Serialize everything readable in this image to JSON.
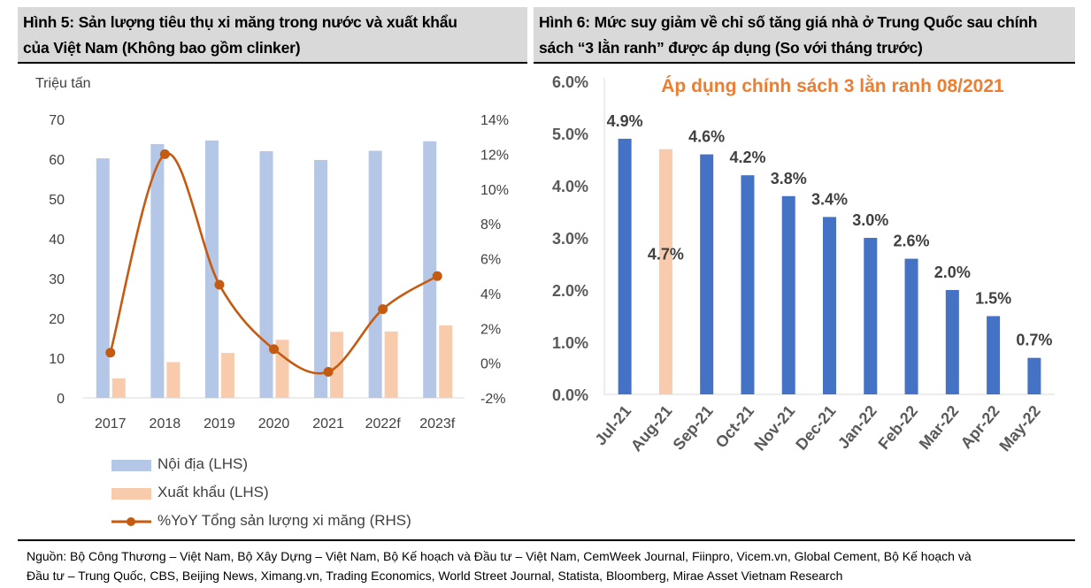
{
  "figure5": {
    "title_line1": "Hình 5: Sản lượng tiêu thụ xi măng trong nước và xuất khẩu",
    "title_line2": "của Việt Nam (Không bao gồm clinker)",
    "unit_label": "Triệu tấn",
    "legend": {
      "domestic": "Nội địa (LHS)",
      "export": "Xuất khẩu (LHS)",
      "yoy": "%YoY Tổng sản lượng xi măng (RHS)"
    }
  },
  "figure6": {
    "title_line1": "Hình 6: Mức suy giảm về chỉ số tăng giá nhà ở Trung Quốc sau chính",
    "title_line2": "sách “3 lằn ranh” được áp dụng (So với tháng trước)",
    "annotation": "Áp dụng chính sách 3 lằn ranh 08/2021"
  },
  "source": {
    "line1": "Nguồn: Bộ Công Thương – Việt Nam, Bộ Xây Dựng – Việt Nam, Bộ Kế hoạch và Đầu tư – Việt Nam, CemWeek Journal, Fiinpro, Vicem.vn, Global Cement, Bộ Kế hoạch và",
    "line2": "Đầu tư – Trung Quốc, CBS, Beijing News, Ximang.vn, Trading Economics, World Street Journal, Statista, Bloomberg, Mirae Asset Vietnam Research"
  },
  "colors": {
    "domestic": "#b4c7e7",
    "export": "#f8cbad",
    "yoy_line": "#c55a11",
    "bar_blue": "#4472c4",
    "bar_highlight": "#f8cbad",
    "annotation": "#ed7d31",
    "header_bg": "#d9d9d9"
  },
  "chart_data": [
    {
      "type": "bar",
      "combo_with": "line",
      "categories": [
        "2017",
        "2018",
        "2019",
        "2020",
        "2021",
        "2022f",
        "2023f"
      ],
      "series": [
        {
          "name": "Nội địa (LHS)",
          "type": "bar",
          "axis": "left",
          "values": [
            60.2,
            63.8,
            64.7,
            62.0,
            59.8,
            62.1,
            64.5
          ]
        },
        {
          "name": "Xuất khẩu (LHS)",
          "type": "bar",
          "axis": "left",
          "values": [
            4.9,
            9.0,
            11.3,
            14.6,
            16.6,
            16.7,
            18.2
          ]
        },
        {
          "name": "%YoY Tổng sản lượng xi măng (RHS)",
          "type": "line",
          "axis": "right",
          "values": [
            0.6,
            12.0,
            4.5,
            0.8,
            -0.5,
            3.1,
            5.0
          ]
        }
      ],
      "ylabel": "Triệu tấn",
      "ylim": [
        0,
        70
      ],
      "y_ticks": [
        "0",
        "10",
        "20",
        "30",
        "40",
        "50",
        "60",
        "70"
      ],
      "y2lim": [
        -2,
        14
      ],
      "y2_ticks": [
        "-2%",
        "0%",
        "2%",
        "4%",
        "6%",
        "8%",
        "10%",
        "12%",
        "14%"
      ],
      "legend_position": "bottom",
      "grid": false
    },
    {
      "type": "bar",
      "categories": [
        "Jul-21",
        "Aug-21",
        "Sep-21",
        "Oct-21",
        "Nov-21",
        "Dec-21",
        "Jan-22",
        "Feb-22",
        "Mar-22",
        "Apr-22",
        "May-22"
      ],
      "values": [
        4.9,
        4.7,
        4.6,
        4.2,
        3.8,
        3.4,
        3.0,
        2.6,
        2.0,
        1.5,
        0.7
      ],
      "data_labels": [
        "4.9%",
        "4.7%",
        "4.6%",
        "4.2%",
        "3.8%",
        "3.4%",
        "3.0%",
        "2.6%",
        "2.0%",
        "1.5%",
        "0.7%"
      ],
      "highlight_index": 1,
      "ylim": [
        0,
        6
      ],
      "y_ticks": [
        "0.0%",
        "1.0%",
        "2.0%",
        "3.0%",
        "4.0%",
        "5.0%",
        "6.0%"
      ],
      "annotation": "Áp dụng chính sách 3 lằn ranh 08/2021",
      "grid": false
    }
  ]
}
